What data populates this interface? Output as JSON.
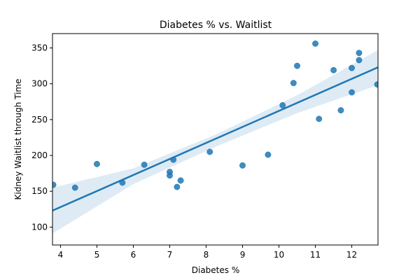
{
  "chart_data": {
    "type": "scatter",
    "title": "Diabetes % vs. Waitlist",
    "xlabel": "Diabetes %",
    "ylabel": "Kidney Waitlist through Time",
    "xlim": [
      3.78,
      12.72
    ],
    "ylim": [
      75,
      370
    ],
    "xticks": [
      4,
      5,
      6,
      7,
      8,
      9,
      10,
      11,
      12
    ],
    "yticks": [
      100,
      150,
      200,
      250,
      300,
      350
    ],
    "grid": false,
    "legend": "none",
    "colors": {
      "points": "#1f77b4",
      "regression_line": "#1f77b4",
      "confidence_band": "#1f77b4"
    },
    "points": [
      {
        "x": 3.8,
        "y": 159
      },
      {
        "x": 4.4,
        "y": 155
      },
      {
        "x": 5.0,
        "y": 188
      },
      {
        "x": 5.7,
        "y": 162
      },
      {
        "x": 6.3,
        "y": 187
      },
      {
        "x": 7.0,
        "y": 172
      },
      {
        "x": 7.0,
        "y": 177
      },
      {
        "x": 7.1,
        "y": 194
      },
      {
        "x": 7.2,
        "y": 156
      },
      {
        "x": 7.3,
        "y": 165
      },
      {
        "x": 8.1,
        "y": 205
      },
      {
        "x": 9.0,
        "y": 186
      },
      {
        "x": 9.7,
        "y": 201
      },
      {
        "x": 10.1,
        "y": 270
      },
      {
        "x": 10.4,
        "y": 301
      },
      {
        "x": 10.5,
        "y": 325
      },
      {
        "x": 11.0,
        "y": 356
      },
      {
        "x": 11.1,
        "y": 251
      },
      {
        "x": 11.5,
        "y": 319
      },
      {
        "x": 11.7,
        "y": 263
      },
      {
        "x": 12.0,
        "y": 288
      },
      {
        "x": 12.0,
        "y": 322
      },
      {
        "x": 12.2,
        "y": 333
      },
      {
        "x": 12.2,
        "y": 343
      },
      {
        "x": 12.7,
        "y": 299
      }
    ],
    "regression": {
      "start": {
        "x": 3.78,
        "y": 123
      },
      "end": {
        "x": 12.72,
        "y": 323
      }
    },
    "confidence_band": {
      "x": [
        3.78,
        6.0,
        8.3,
        10.5,
        12.72
      ],
      "upper": [
        155,
        182,
        230,
        284,
        347
      ],
      "lower": [
        91,
        160,
        213,
        259,
        298
      ]
    }
  }
}
